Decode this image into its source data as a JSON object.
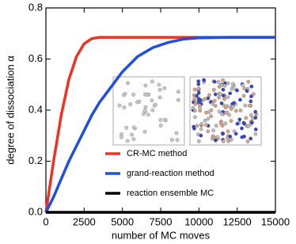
{
  "chart_data": {
    "type": "line",
    "xlabel": "number of MC moves",
    "ylabel": "degree of dissociation α",
    "x": [
      0,
      500,
      1000,
      1500,
      2000,
      2500,
      3000,
      3500,
      4000,
      5000,
      6000,
      7000,
      8000,
      9000,
      10000,
      12000,
      15000
    ],
    "series": [
      {
        "name": "CR-MC method",
        "color": "#ee3322",
        "values": [
          0,
          0.2,
          0.38,
          0.52,
          0.61,
          0.66,
          0.68,
          0.685,
          0.685,
          0.685,
          0.685,
          0.685,
          0.685,
          0.685,
          0.685,
          0.685,
          0.685
        ]
      },
      {
        "name": "grand-reaction method",
        "color": "#1f4fe0",
        "values": [
          0,
          0.06,
          0.13,
          0.2,
          0.26,
          0.32,
          0.38,
          0.43,
          0.47,
          0.55,
          0.61,
          0.645,
          0.665,
          0.678,
          0.683,
          0.685,
          0.685
        ]
      },
      {
        "name": "reaction ensemble MC",
        "color": "#000000",
        "values": [
          0,
          0,
          0,
          0,
          0,
          0,
          0,
          0,
          0,
          0,
          0,
          0,
          0,
          0,
          0,
          0,
          0
        ]
      }
    ],
    "xlim": [
      0,
      15000
    ],
    "xticks": [
      0,
      2500,
      5000,
      7500,
      10000,
      12500,
      15000
    ],
    "ylim": [
      0,
      0.8
    ],
    "yticks": [
      {
        "value": 0,
        "label": "0.0"
      },
      {
        "value": 0.2,
        "label": "0.2"
      },
      {
        "value": 0.4,
        "label": "0.4"
      },
      {
        "value": 0.6,
        "label": "0.6"
      },
      {
        "value": 0.8,
        "label": "0.8"
      }
    ],
    "legend": "lower right"
  }
}
